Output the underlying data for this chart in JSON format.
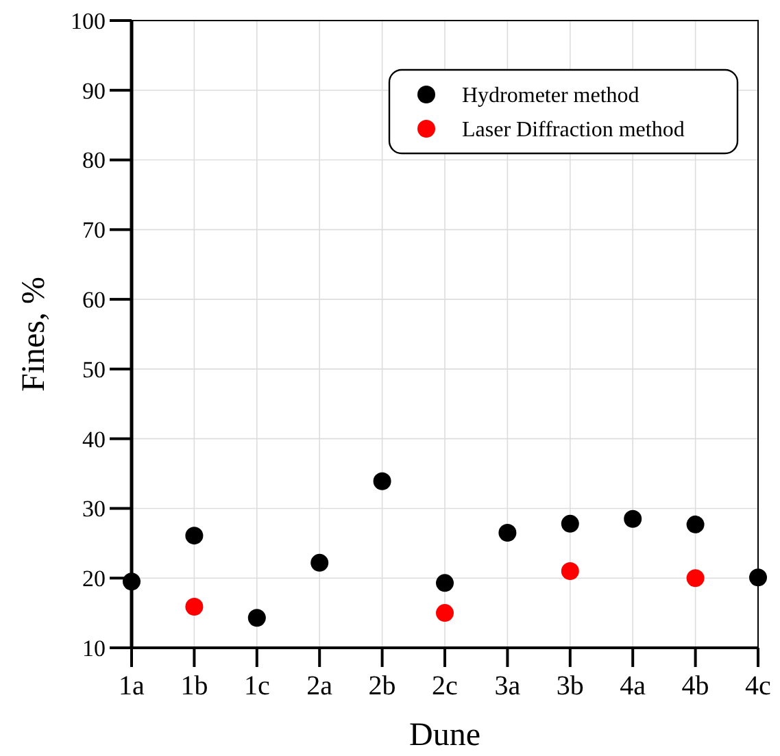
{
  "chart_data": {
    "type": "scatter",
    "xlabel": "Dune",
    "ylabel": "Fines, %",
    "categories": [
      "1a",
      "1b",
      "1c",
      "2a",
      "2b",
      "2c",
      "3a",
      "3b",
      "4a",
      "4b",
      "4c"
    ],
    "series": [
      {
        "name": "Hydrometer method",
        "color": "#000000",
        "values": [
          19.5,
          26.1,
          14.3,
          22.2,
          33.9,
          19.3,
          26.5,
          27.8,
          28.5,
          27.7,
          20.1
        ]
      },
      {
        "name": "Laser Diffraction method",
        "color": "#ff0000",
        "values": [
          null,
          15.9,
          null,
          null,
          null,
          15.0,
          null,
          21.0,
          null,
          20.0,
          null
        ]
      }
    ],
    "ylim": [
      10,
      100
    ],
    "yticks": [
      10,
      20,
      30,
      40,
      50,
      60,
      70,
      80,
      90,
      100
    ],
    "grid": true,
    "legend": "top right",
    "marker": "circle"
  }
}
